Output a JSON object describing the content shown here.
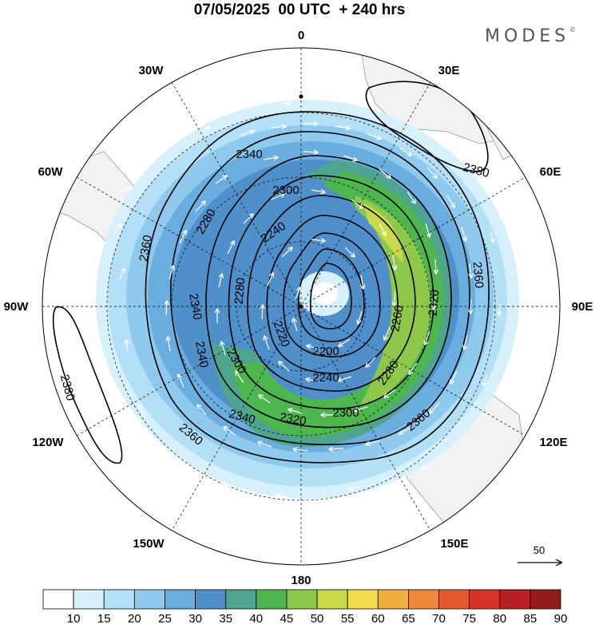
{
  "title": "07/05/2025  00 UTC  + 240 hrs",
  "brand": "MODES",
  "brand_mark": "©",
  "longitude_labels": [
    {
      "text": "0",
      "deg": 0
    },
    {
      "text": "30E",
      "deg": 30
    },
    {
      "text": "60E",
      "deg": 60
    },
    {
      "text": "90E",
      "deg": 90
    },
    {
      "text": "120E",
      "deg": 120
    },
    {
      "text": "150E",
      "deg": 150
    },
    {
      "text": "180",
      "deg": 180
    },
    {
      "text": "150W",
      "deg": 210
    },
    {
      "text": "120W",
      "deg": 240
    },
    {
      "text": "90W",
      "deg": 270
    },
    {
      "text": "60W",
      "deg": 300
    },
    {
      "text": "30W",
      "deg": 330
    }
  ],
  "contour_labels": [
    {
      "text": "2340"
    },
    {
      "text": "2300"
    },
    {
      "text": "2280"
    },
    {
      "text": "2240"
    },
    {
      "text": "2380"
    },
    {
      "text": "2360"
    },
    {
      "text": "2360"
    },
    {
      "text": "2340"
    },
    {
      "text": "2280"
    },
    {
      "text": "2220"
    },
    {
      "text": "2260"
    },
    {
      "text": "2320"
    },
    {
      "text": "2340"
    },
    {
      "text": "2380"
    },
    {
      "text": "2300"
    },
    {
      "text": "2200"
    },
    {
      "text": "2240"
    },
    {
      "text": "2280"
    },
    {
      "text": "2300"
    },
    {
      "text": "2320"
    },
    {
      "text": "2340"
    },
    {
      "text": "2360"
    },
    {
      "text": "2360"
    }
  ],
  "vector_reference": {
    "label": "50"
  },
  "colorbar": {
    "ticks": [
      "10",
      "15",
      "20",
      "25",
      "30",
      "35",
      "40",
      "45",
      "50",
      "55",
      "60",
      "65",
      "70",
      "75",
      "80",
      "85",
      "90"
    ],
    "colors": [
      "#ffffff",
      "#d6f0fc",
      "#b4e0f7",
      "#8fcaee",
      "#6aaee0",
      "#4f8fca",
      "#4ea48f",
      "#4db64f",
      "#8dc84a",
      "#c8d94a",
      "#f3dd4e",
      "#f0ae3e",
      "#ed8a3a",
      "#e45a2f",
      "#d63227",
      "#b81f26",
      "#931b1b"
    ]
  }
}
